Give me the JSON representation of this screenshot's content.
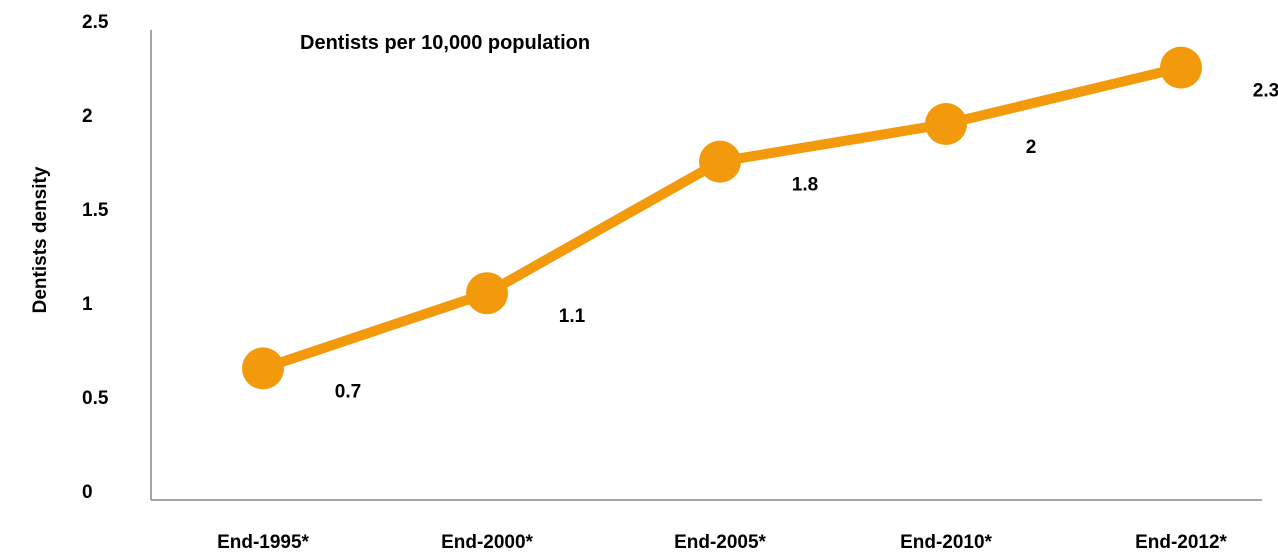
{
  "chart_data": {
    "type": "line",
    "title": "Dentists per 10,000 population",
    "xlabel": "",
    "ylabel": "Dentists density",
    "categories": [
      "End-1995*",
      "End-2000*",
      "End-2005*",
      "End-2010*",
      "End-2012*"
    ],
    "series": [
      {
        "values": [
          0.7,
          1.1,
          1.8,
          2,
          2.3
        ],
        "data_labels": [
          "0.7",
          "1.1",
          "1.8",
          "2",
          "2.3"
        ]
      }
    ],
    "ylim": [
      0,
      2.5
    ],
    "yticks": [
      "0",
      "0.5",
      "1",
      "1.5",
      "2",
      "2.5"
    ],
    "grid": false,
    "legend": "none",
    "colors": {
      "line": "#F29A0C",
      "marker": "#F29A0C",
      "axis": "#888888"
    }
  }
}
